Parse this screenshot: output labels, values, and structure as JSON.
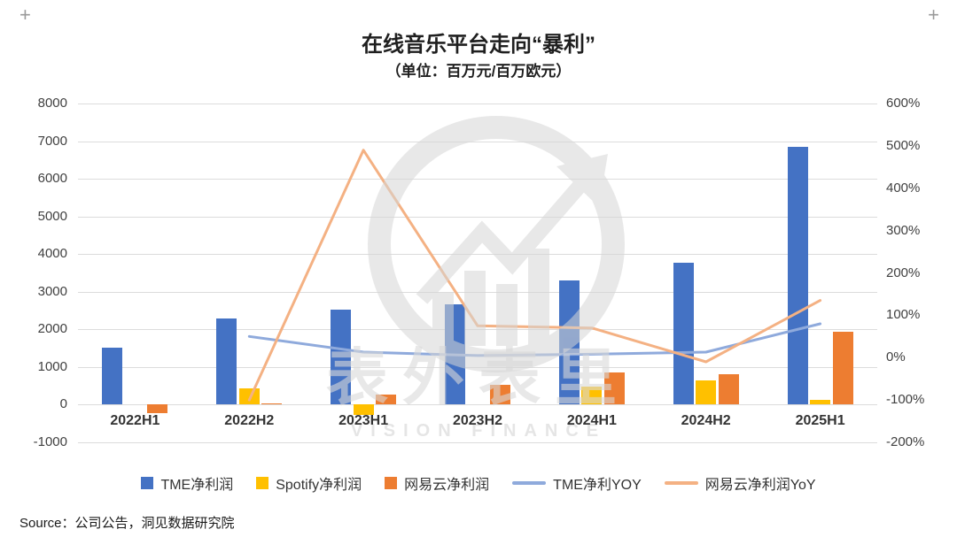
{
  "decor": {
    "corner_mark": "+"
  },
  "title": "在线音乐平台走向“暴利”",
  "subtitle": "（单位：百万元/百万欧元）",
  "source": "Source：公司公告，洞见数据研究院",
  "watermark": {
    "cn": "表外表里",
    "en": "VISION FINANCE"
  },
  "colors": {
    "tme_bar": "#4472C4",
    "spotify_bar": "#FFC000",
    "netease_bar": "#ED7D31",
    "tme_yoy_line": "#8FAADC",
    "netease_yoy_line": "#F4B183",
    "grid": "#DCDCDC",
    "axis_text": "#404040"
  },
  "chart_data": {
    "type": "bar+line",
    "title": "在线音乐平台走向“暴利”",
    "subtitle": "（单位：百万元/百万欧元）",
    "categories": [
      "2022H1",
      "2022H2",
      "2023H1",
      "2023H2",
      "2024H1",
      "2024H2",
      "2025H1"
    ],
    "bar_series": [
      {
        "name": "TME净利润",
        "axis": "left",
        "color": "#4472C4",
        "values": [
          1520,
          2280,
          2530,
          2660,
          3300,
          3780,
          6850
        ]
      },
      {
        "name": "Spotify净利润",
        "axis": "left",
        "color": "#FFC000",
        "values": [
          0,
          430,
          -270,
          0,
          470,
          640,
          130
        ]
      },
      {
        "name": "网易云净利润",
        "axis": "left",
        "color": "#ED7D31",
        "values": [
          -230,
          30,
          280,
          520,
          860,
          820,
          1930
        ]
      }
    ],
    "line_series": [
      {
        "name": "TME净利YOY",
        "axis": "right",
        "color": "#8FAADC",
        "values": [
          null,
          50,
          13,
          5,
          8,
          13,
          80
        ]
      },
      {
        "name": "网易云净利润YoY",
        "axis": "right",
        "color": "#F4B183",
        "values": [
          null,
          -100,
          490,
          75,
          70,
          -10,
          135
        ]
      }
    ],
    "left_axis": {
      "ticks": [
        "8000",
        "7000",
        "6000",
        "5000",
        "4000",
        "3000",
        "2000",
        "1000",
        "0",
        "-1000"
      ],
      "min": -1000,
      "max": 8000
    },
    "right_axis": {
      "ticks": [
        "600%",
        "500%",
        "400%",
        "300%",
        "200%",
        "100%",
        "0%",
        "-100%",
        "-200%"
      ],
      "min": -200,
      "max": 600
    },
    "legend_position": "bottom",
    "grid": "horizontal"
  }
}
